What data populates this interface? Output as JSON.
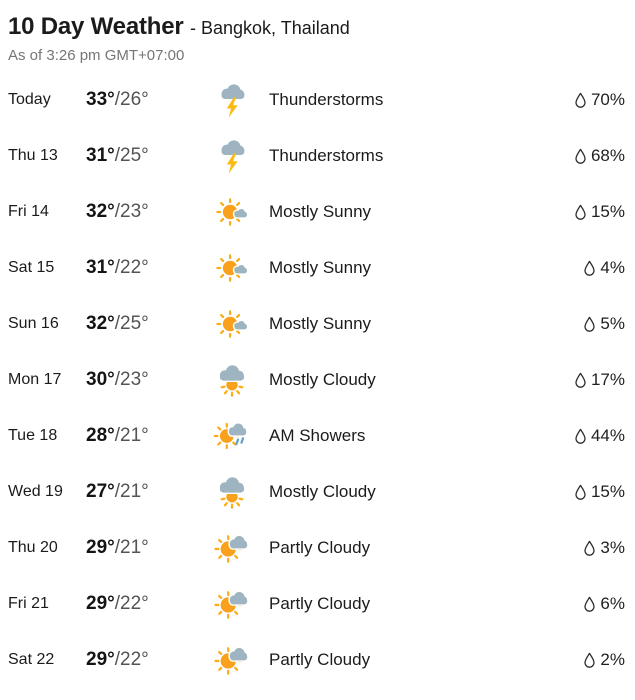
{
  "header": {
    "title": "10 Day Weather",
    "location": "- Bangkok, Thailand",
    "as_of": "As of 3:26 pm GMT+07:00"
  },
  "labels": {
    "temp_separator": "/"
  },
  "colors": {
    "sun": "#F9A01C",
    "ray": "#FBAE17",
    "cloud": "#9EB4C0",
    "bolt": "#FDBA12",
    "rain": "#64A3C6",
    "droplet_outline": "#2b2b2b",
    "text_dark": "#1b1b1b",
    "text_gray": "#767676"
  },
  "rows": [
    {
      "day": "Today",
      "high": "33°",
      "low": "26°",
      "icon": "thunderstorm-icon",
      "condition": "Thunderstorms",
      "precip": "70%"
    },
    {
      "day": "Thu 13",
      "high": "31°",
      "low": "25°",
      "icon": "thunderstorm-icon",
      "condition": "Thunderstorms",
      "precip": "68%"
    },
    {
      "day": "Fri 14",
      "high": "32°",
      "low": "23°",
      "icon": "mostly-sunny-icon",
      "condition": "Mostly Sunny",
      "precip": "15%"
    },
    {
      "day": "Sat 15",
      "high": "31°",
      "low": "22°",
      "icon": "mostly-sunny-icon",
      "condition": "Mostly Sunny",
      "precip": "4%"
    },
    {
      "day": "Sun 16",
      "high": "32°",
      "low": "25°",
      "icon": "mostly-sunny-icon",
      "condition": "Mostly Sunny",
      "precip": "5%"
    },
    {
      "day": "Mon 17",
      "high": "30°",
      "low": "23°",
      "icon": "mostly-cloudy-icon",
      "condition": "Mostly Cloudy",
      "precip": "17%"
    },
    {
      "day": "Tue 18",
      "high": "28°",
      "low": "21°",
      "icon": "am-showers-icon",
      "condition": "AM Showers",
      "precip": "44%"
    },
    {
      "day": "Wed 19",
      "high": "27°",
      "low": "21°",
      "icon": "mostly-cloudy-icon",
      "condition": "Mostly Cloudy",
      "precip": "15%"
    },
    {
      "day": "Thu 20",
      "high": "29°",
      "low": "21°",
      "icon": "partly-cloudy-icon",
      "condition": "Partly Cloudy",
      "precip": "3%"
    },
    {
      "day": "Fri 21",
      "high": "29°",
      "low": "22°",
      "icon": "partly-cloudy-icon",
      "condition": "Partly Cloudy",
      "precip": "6%"
    },
    {
      "day": "Sat 22",
      "high": "29°",
      "low": "22°",
      "icon": "partly-cloudy-icon",
      "condition": "Partly Cloudy",
      "precip": "2%"
    }
  ]
}
